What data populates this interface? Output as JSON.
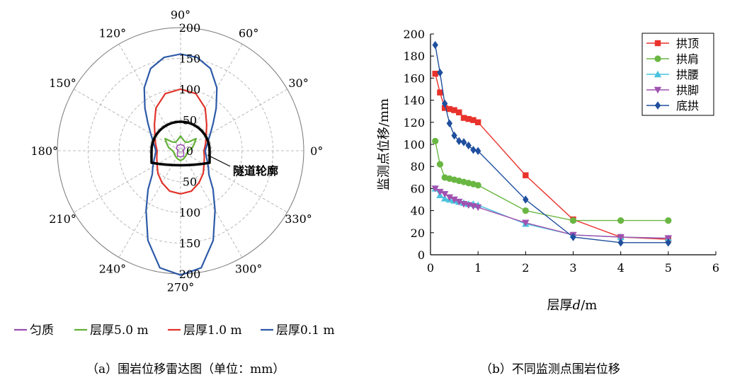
{
  "chart_data": [
    {
      "type": "polar",
      "radial_ticks": [
        0,
        50,
        100,
        150,
        200
      ],
      "radial_max": 200,
      "angle_labels": [
        "0°",
        "30°",
        "60°",
        "90°",
        "120°",
        "150°",
        "180°",
        "210°",
        "240°",
        "270°",
        "300°",
        "330°"
      ],
      "annotation": "隧道轮廓",
      "series": [
        {
          "name": "匀质",
          "color": "#9b4fb0",
          "points": [
            [
              0,
              4
            ],
            [
              30,
              8
            ],
            [
              60,
              10
            ],
            [
              90,
              10
            ],
            [
              120,
              10
            ],
            [
              150,
              8
            ],
            [
              180,
              4
            ],
            [
              210,
              6
            ],
            [
              240,
              10
            ],
            [
              270,
              10
            ],
            [
              300,
              10
            ],
            [
              330,
              6
            ]
          ]
        },
        {
          "name": "层厚5.0 m",
          "color": "#62b036",
          "points": [
            [
              0,
              13
            ],
            [
              15,
              20
            ],
            [
              25,
              24
            ],
            [
              38,
              32
            ],
            [
              48,
              19
            ],
            [
              60,
              16
            ],
            [
              75,
              18
            ],
            [
              90,
              24
            ],
            [
              105,
              18
            ],
            [
              120,
              16
            ],
            [
              132,
              19
            ],
            [
              142,
              32
            ],
            [
              155,
              24
            ],
            [
              165,
              20
            ],
            [
              180,
              13
            ],
            [
              200,
              11
            ],
            [
              225,
              12
            ],
            [
              250,
              14
            ],
            [
              270,
              16
            ],
            [
              290,
              14
            ],
            [
              315,
              12
            ],
            [
              340,
              11
            ]
          ]
        },
        {
          "name": "层厚1.0 m",
          "color": "#e0332a",
          "points": [
            [
              0,
              38
            ],
            [
              15,
              42
            ],
            [
              30,
              48
            ],
            [
              45,
              60
            ],
            [
              60,
              80
            ],
            [
              75,
              96
            ],
            [
              90,
              100
            ],
            [
              105,
              96
            ],
            [
              120,
              80
            ],
            [
              135,
              60
            ],
            [
              150,
              48
            ],
            [
              165,
              42
            ],
            [
              180,
              38
            ],
            [
              195,
              40
            ],
            [
              210,
              44
            ],
            [
              225,
              52
            ],
            [
              240,
              60
            ],
            [
              255,
              68
            ],
            [
              270,
              70
            ],
            [
              285,
              68
            ],
            [
              300,
              60
            ],
            [
              315,
              52
            ],
            [
              330,
              44
            ],
            [
              345,
              40
            ]
          ]
        },
        {
          "name": "层厚0.1 m",
          "color": "#2e5aa8",
          "points": [
            [
              0,
              40
            ],
            [
              10,
              43
            ],
            [
              20,
              48
            ],
            [
              30,
              56
            ],
            [
              40,
              69
            ],
            [
              50,
              90
            ],
            [
              60,
              118
            ],
            [
              70,
              142
            ],
            [
              80,
              154
            ],
            [
              90,
              157
            ],
            [
              100,
              154
            ],
            [
              110,
              142
            ],
            [
              120,
              118
            ],
            [
              130,
              90
            ],
            [
              140,
              69
            ],
            [
              150,
              56
            ],
            [
              160,
              48
            ],
            [
              170,
              43
            ],
            [
              180,
              40
            ],
            [
              190,
              42
            ],
            [
              200,
              46
            ],
            [
              210,
              52
            ],
            [
              220,
              60
            ],
            [
              230,
              82
            ],
            [
              240,
              112
            ],
            [
              250,
              155
            ],
            [
              260,
              193
            ],
            [
              270,
              202
            ],
            [
              280,
              193
            ],
            [
              290,
              155
            ],
            [
              300,
              112
            ],
            [
              310,
              82
            ],
            [
              320,
              60
            ],
            [
              330,
              52
            ],
            [
              340,
              46
            ],
            [
              350,
              42
            ]
          ]
        }
      ],
      "legend": [
        "匀质",
        "层厚5.0 m",
        "层厚1.0 m",
        "层厚0.1 m"
      ]
    },
    {
      "type": "line",
      "xlabel_main": "层厚",
      "xlabel_var": "d",
      "xlabel_unit": "/m",
      "ylabel": "监测点位移/mm",
      "xlim": [
        0,
        6
      ],
      "ylim": [
        0,
        200
      ],
      "xticks": [
        0,
        1,
        2,
        3,
        4,
        5,
        6
      ],
      "yticks": [
        0,
        20,
        40,
        60,
        80,
        100,
        120,
        140,
        160,
        180,
        200
      ],
      "x": [
        0.1,
        0.2,
        0.3,
        0.4,
        0.5,
        0.6,
        0.7,
        0.8,
        0.9,
        1,
        2,
        3,
        4,
        5
      ],
      "legend_position": "top-right",
      "series": [
        {
          "name": "拱顶",
          "color": "#e8322b",
          "marker": "square",
          "values": [
            164,
            147,
            133,
            132,
            131,
            129,
            124,
            123,
            122,
            120,
            72,
            32,
            16,
            14
          ]
        },
        {
          "name": "拱肩",
          "color": "#69b742",
          "marker": "circle",
          "values": [
            103,
            82,
            70,
            69,
            68,
            67,
            66,
            65,
            64,
            63,
            40,
            31,
            31,
            31
          ]
        },
        {
          "name": "拱腰",
          "color": "#49c3de",
          "marker": "triangle-up",
          "values": [
            60,
            54,
            51,
            50,
            49,
            48,
            47,
            46,
            46,
            45,
            28,
            18,
            16,
            15
          ]
        },
        {
          "name": "拱脚",
          "color": "#a052b0",
          "marker": "triangle-down",
          "values": [
            60,
            57,
            55,
            52,
            50,
            48,
            46,
            45,
            44,
            43,
            29,
            18,
            16,
            15
          ]
        },
        {
          "name": "底拱",
          "color": "#1f4f9e",
          "marker": "diamond",
          "values": [
            190,
            165,
            137,
            119,
            108,
            103,
            102,
            99,
            95,
            94,
            50,
            16,
            11,
            11
          ]
        }
      ]
    }
  ],
  "captions": {
    "a": "（a）围岩位移雷达图（单位：mm）",
    "b": "（b）不同监测点围岩位移"
  }
}
